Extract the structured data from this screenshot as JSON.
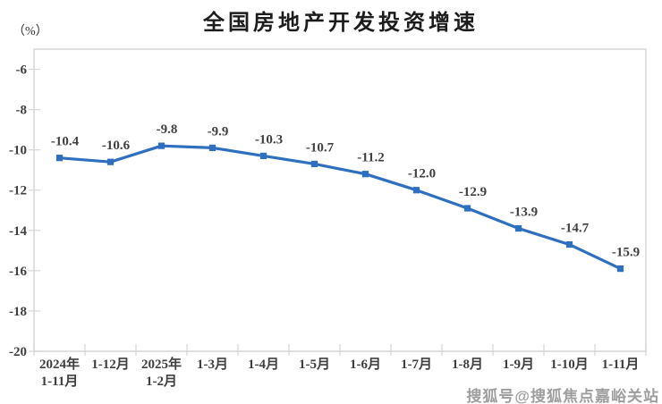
{
  "page": {
    "title": "全国房地产开发投资增速",
    "unit_label": "（%）",
    "watermark": "搜狐号@搜狐焦点嘉峪关站"
  },
  "chart_data": {
    "type": "line",
    "title": "全国房地产开发投资增速",
    "ylabel": "（%）",
    "categories": [
      [
        "2024年",
        "1-11月"
      ],
      [
        "1-12月"
      ],
      [
        "2025年",
        "1-2月"
      ],
      [
        "1-3月"
      ],
      [
        "1-4月"
      ],
      [
        "1-5月"
      ],
      [
        "1-6月"
      ],
      [
        "1-7月"
      ],
      [
        "1-8月"
      ],
      [
        "1-9月"
      ],
      [
        "1-10月"
      ],
      [
        "1-11月"
      ]
    ],
    "values": [
      -10.4,
      -10.6,
      -9.8,
      -9.9,
      -10.3,
      -10.7,
      -11.2,
      -12.0,
      -12.9,
      -13.9,
      -14.7,
      -15.9
    ],
    "point_labels": [
      "-10.4",
      "-10.6",
      "-9.8",
      "-9.9",
      "-10.3",
      "-10.7",
      "-11.2",
      "-12.0",
      "-12.9",
      "-13.9",
      "-14.7",
      "-15.9"
    ],
    "y_ticks": [
      -6,
      -8,
      -10,
      -12,
      -14,
      -16,
      -18,
      -20
    ],
    "ylim": [
      -20,
      -5
    ],
    "grid": false,
    "legend": "none",
    "line_color": "#2e6fc0",
    "marker": "square",
    "marker_color": "#2e6fc0",
    "label_color": "#3f3f3f",
    "axis_color": "#d6d6d6"
  }
}
